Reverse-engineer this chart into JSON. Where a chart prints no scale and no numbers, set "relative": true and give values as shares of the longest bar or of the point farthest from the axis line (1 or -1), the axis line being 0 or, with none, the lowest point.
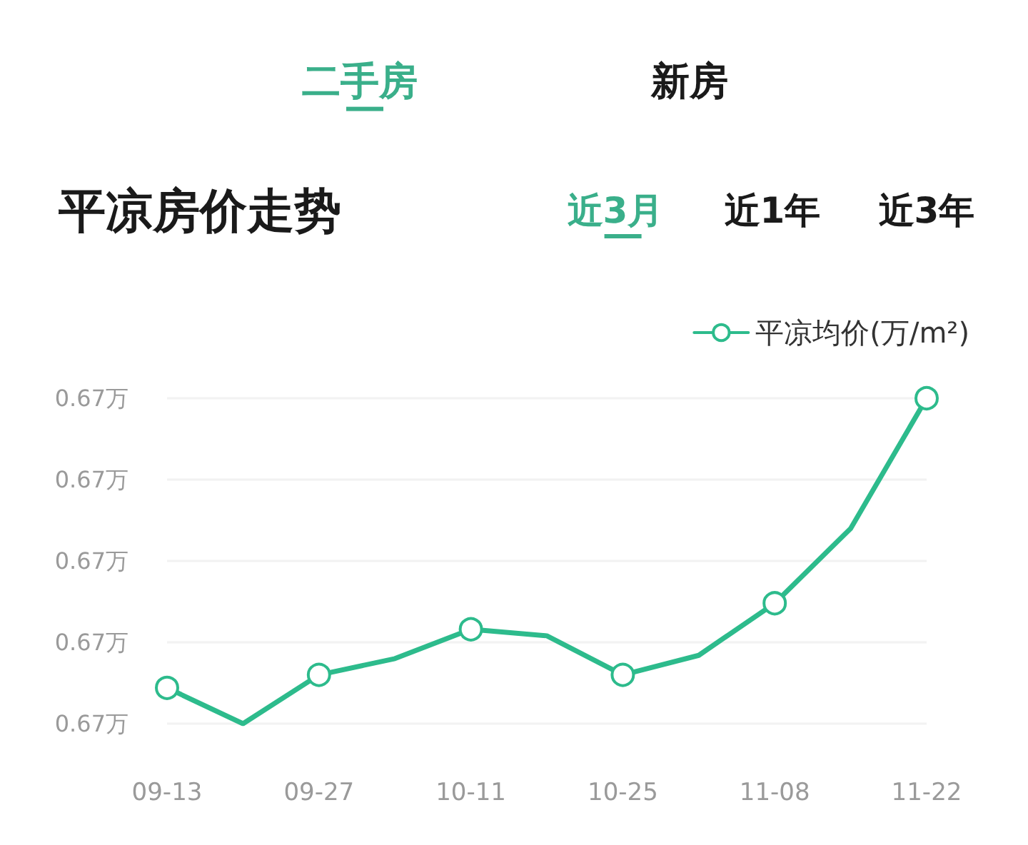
{
  "chart_data": {
    "type": "line",
    "title": "平凉房价走势",
    "annotations": [
      "二手房",
      "新房",
      "近3月",
      "近1年",
      "近3年",
      "0.67万",
      "0.67万",
      "0.67万",
      "0.67万",
      "0.67万"
    ],
    "categories": [
      "09-13",
      null,
      "09-27",
      null,
      "10-11",
      null,
      "10-25",
      null,
      "11-08",
      null,
      "11-22"
    ],
    "series": [
      {
        "name": "平凉均价(万/m²)",
        "color": "#2dbb8c",
        "values": [
          0.11,
          0,
          0.15,
          0.2,
          0.29,
          0.27,
          0.15,
          0.21,
          0.37,
          0.6,
          1
        ]
      }
    ],
    "relative": true,
    "grid": "y",
    "legend": "top right",
    "marker": "circle",
    "line_style": "solid"
  }
}
